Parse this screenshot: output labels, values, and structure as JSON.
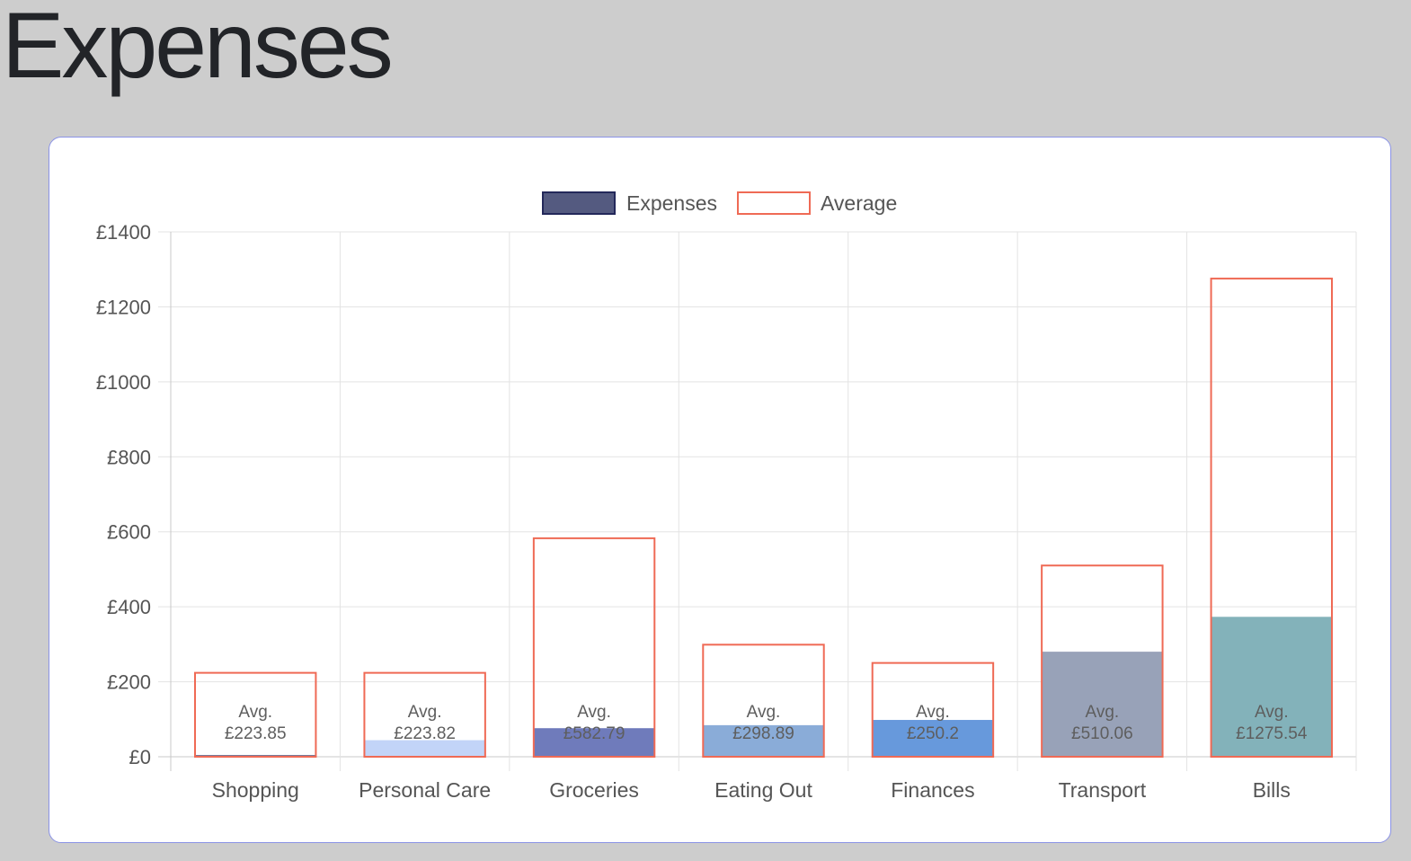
{
  "page": {
    "title": "Expenses"
  },
  "chart_data": {
    "type": "bar",
    "categories": [
      "Shopping",
      "Personal Care",
      "Groceries",
      "Eating Out",
      "Finances",
      "Transport",
      "Bills"
    ],
    "series": [
      {
        "name": "Expenses",
        "values": [
          3,
          43,
          75,
          83,
          97,
          279,
          372
        ],
        "bar_colors": [
          "#4a4f78",
          "#c2d4f8",
          "#6f7bbb",
          "#8aacd8",
          "#6799dc",
          "#98a2b8",
          "#83b2ba"
        ],
        "legend_fill": "#545a80",
        "legend_stroke": "#23285a"
      },
      {
        "name": "Average",
        "values": [
          223.85,
          223.82,
          582.79,
          298.89,
          250.2,
          510.06,
          1275.54
        ],
        "stroke": "#ef6a55"
      }
    ],
    "data_labels": [
      [
        "Avg.",
        "£223.85"
      ],
      [
        "Avg.",
        "£223.82"
      ],
      [
        "Avg.",
        "£582.79"
      ],
      [
        "Avg.",
        "£298.89"
      ],
      [
        "Avg.",
        "£250.2"
      ],
      [
        "Avg.",
        "£510.06"
      ],
      [
        "Avg.",
        "£1275.54"
      ]
    ],
    "yticks": [
      "£0",
      "£200",
      "£400",
      "£600",
      "£800",
      "£1000",
      "£1200",
      "£1400"
    ],
    "ytick_values": [
      0,
      200,
      400,
      600,
      800,
      1000,
      1200,
      1400
    ],
    "ylim": [
      0,
      1400
    ],
    "grid": true,
    "legend_position": "top-center",
    "xlabel": "",
    "ylabel": ""
  }
}
